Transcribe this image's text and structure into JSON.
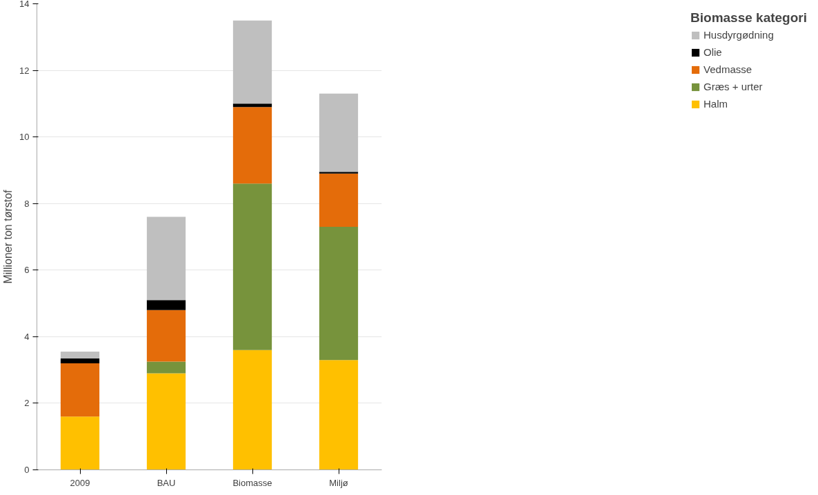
{
  "chart_data": {
    "type": "bar",
    "stacked": true,
    "ylabel": "Millioner ton tørstof",
    "legend_title": "Biomasse kategori",
    "categories": [
      "2009",
      "BAU",
      "Biomasse",
      "Miljø"
    ],
    "series": [
      {
        "name": "Halm",
        "color": "#ffc000",
        "values": [
          1.6,
          2.9,
          3.6,
          3.3
        ]
      },
      {
        "name": "Græs + urter",
        "color": "#77933c",
        "values": [
          0,
          0.35,
          5.0,
          4.0
        ]
      },
      {
        "name": "Vedmasse",
        "color": "#e46c0a",
        "values": [
          1.6,
          1.55,
          2.3,
          1.6
        ]
      },
      {
        "name": "Olie",
        "color": "#000000",
        "values": [
          0.15,
          0.3,
          0.1,
          0.05
        ]
      },
      {
        "name": "Husdyrgødning",
        "color": "#bfbfbf",
        "values": [
          0.2,
          2.5,
          2.5,
          2.35
        ]
      }
    ],
    "ylim": [
      0,
      14
    ],
    "yticks": [
      0,
      2,
      4,
      6,
      8,
      10,
      12,
      14
    ],
    "grid": "y",
    "legend": "right"
  }
}
